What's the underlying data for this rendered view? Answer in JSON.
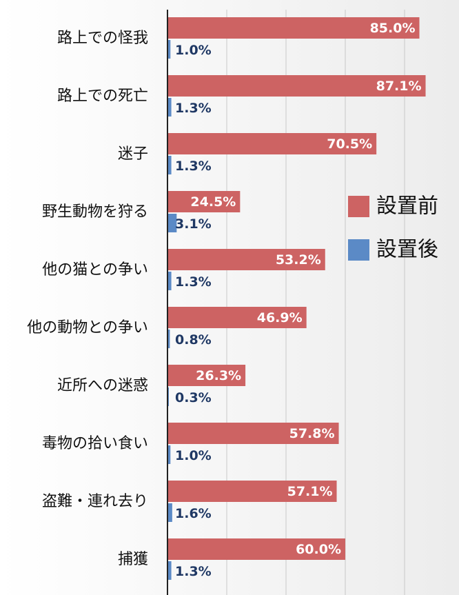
{
  "chart_data": {
    "type": "bar",
    "orientation": "horizontal",
    "title": "",
    "xlabel": "",
    "ylabel": "",
    "xlim": [
      0,
      100
    ],
    "grid": true,
    "legend_position": "right",
    "categories": [
      "路上での怪我",
      "路上での死亡",
      "迷子",
      "野生動物を狩る",
      "他の猫との争い",
      "他の動物との争い",
      "近所への迷惑",
      "毒物の拾い食い",
      "盗難・連れ去り",
      "捕獲"
    ],
    "series": [
      {
        "name": "設置前",
        "color": "#cd6363",
        "values": [
          85.0,
          87.1,
          70.5,
          24.5,
          53.2,
          46.9,
          26.3,
          57.8,
          57.1,
          60.0
        ],
        "labels": [
          "85.0%",
          "87.1%",
          "70.5%",
          "24.5%",
          "53.2%",
          "46.9%",
          "26.3%",
          "57.8%",
          "57.1%",
          "60.0%"
        ]
      },
      {
        "name": "設置後",
        "color": "#5b8ac6",
        "values": [
          1.0,
          1.3,
          1.3,
          3.1,
          1.3,
          0.8,
          0.3,
          1.0,
          1.6,
          1.3
        ],
        "labels": [
          "1.0%",
          "1.3%",
          "1.3%",
          "3.1%",
          "1.3%",
          "0.8%",
          "0.3%",
          "1.0%",
          "1.6%",
          "1.3%"
        ]
      }
    ]
  }
}
